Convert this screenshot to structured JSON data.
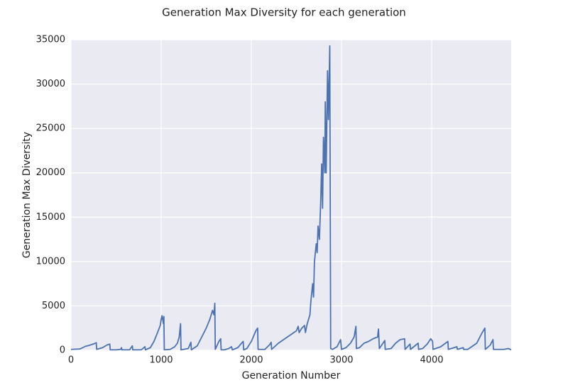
{
  "chart_data": {
    "type": "line",
    "title": "Generation Max Diversity for each generation",
    "x_label": "Generation Number",
    "y_label": "Generation Max Diversity",
    "xlim": [
      0,
      4882
    ],
    "xticks": [
      0,
      1000,
      2000,
      3000,
      4000
    ],
    "ylim": [
      0,
      35000
    ],
    "yticks": [
      0,
      5000,
      10000,
      15000,
      20000,
      25000,
      30000,
      35000
    ],
    "grid": true,
    "series": [
      {
        "color": "#4c72b0",
        "x": [
          0,
          100,
          130,
          160,
          200,
          230,
          260,
          280,
          285,
          300,
          350,
          400,
          430,
          435,
          500,
          550,
          560,
          565,
          650,
          680,
          685,
          780,
          820,
          825,
          880,
          920,
          960,
          990,
          1000,
          1010,
          1025,
          1030,
          1035,
          1100,
          1150,
          1180,
          1200,
          1215,
          1220,
          1300,
          1330,
          1335,
          1400,
          1450,
          1500,
          1540,
          1570,
          1585,
          1595,
          1600,
          1640,
          1660,
          1665,
          1700,
          1750,
          1780,
          1790,
          1850,
          1900,
          1910,
          1915,
          1950,
          2000,
          2050,
          2070,
          2075,
          2150,
          2200,
          2220,
          2225,
          2300,
          2400,
          2500,
          2520,
          2530,
          2560,
          2590,
          2600,
          2620,
          2650,
          2660,
          2680,
          2690,
          2700,
          2720,
          2730,
          2740,
          2755,
          2770,
          2780,
          2790,
          2800,
          2815,
          2820,
          2830,
          2845,
          2855,
          2870,
          2880,
          2900,
          2950,
          2990,
          3000,
          3050,
          3100,
          3140,
          3160,
          3165,
          3200,
          3250,
          3300,
          3350,
          3400,
          3410,
          3420,
          3480,
          3485,
          3550,
          3600,
          3650,
          3700,
          3705,
          3760,
          3765,
          3850,
          3855,
          3900,
          3950,
          3990,
          4010,
          4015,
          4100,
          4180,
          4185,
          4280,
          4285,
          4350,
          4355,
          4400,
          4500,
          4550,
          4590,
          4595,
          4650,
          4680,
          4685,
          4800,
          4850,
          4882
        ],
        "values": [
          100,
          150,
          300,
          450,
          550,
          650,
          750,
          850,
          100,
          150,
          300,
          600,
          700,
          50,
          50,
          100,
          300,
          50,
          50,
          500,
          50,
          50,
          400,
          50,
          300,
          1000,
          2000,
          2800,
          3500,
          3900,
          3000,
          3800,
          50,
          100,
          400,
          800,
          1500,
          3000,
          50,
          200,
          900,
          50,
          500,
          1500,
          2500,
          3500,
          4500,
          4000,
          5300,
          100,
          1000,
          1300,
          50,
          50,
          200,
          400,
          50,
          300,
          900,
          1000,
          50,
          200,
          1000,
          2200,
          2500,
          100,
          100,
          600,
          900,
          100,
          800,
          1500,
          2200,
          2700,
          2000,
          2500,
          2800,
          2000,
          3000,
          4000,
          5500,
          7500,
          6000,
          10000,
          12000,
          11000,
          14000,
          12500,
          17000,
          21000,
          16000,
          24000,
          20000,
          28000,
          20000,
          31500,
          26000,
          34300,
          200,
          100,
          400,
          1200,
          100,
          300,
          800,
          1500,
          2700,
          200,
          300,
          800,
          1000,
          1300,
          1500,
          2400,
          200,
          1100,
          100,
          200,
          800,
          1200,
          1300,
          100,
          700,
          100,
          800,
          100,
          200,
          700,
          1300,
          1000,
          100,
          400,
          1000,
          100,
          400,
          100,
          300,
          100,
          100,
          800,
          1800,
          2500,
          100,
          600,
          1200,
          100,
          100,
          200,
          50
        ]
      }
    ]
  }
}
